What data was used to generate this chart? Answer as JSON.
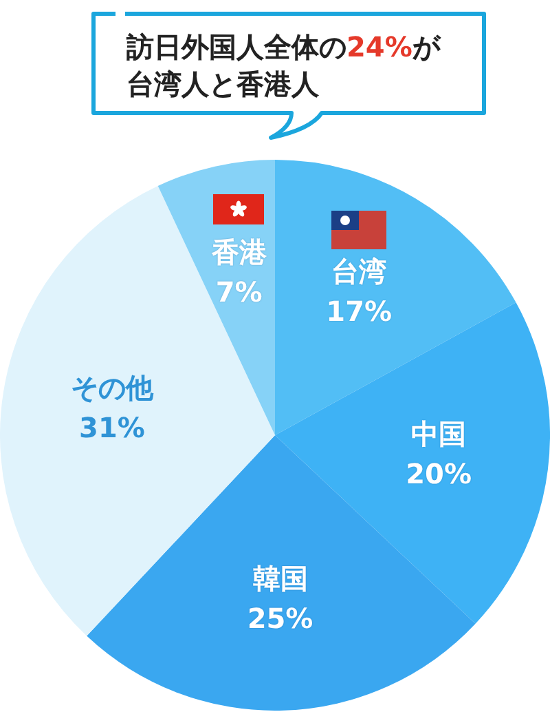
{
  "chart_data": {
    "type": "pie",
    "title": "訪日外国人全体の24%が台湾人と香港人",
    "categories": [
      "台湾",
      "中国",
      "韓国",
      "その他",
      "香港"
    ],
    "values": [
      17,
      20,
      25,
      31,
      7
    ],
    "colors": [
      "#52bef5",
      "#3eb2f5",
      "#3aa7f0",
      "#e0f3fc",
      "#86d2f7"
    ],
    "value_labels": [
      "17%",
      "20%",
      "25%",
      "31%",
      "7%"
    ]
  }
}
